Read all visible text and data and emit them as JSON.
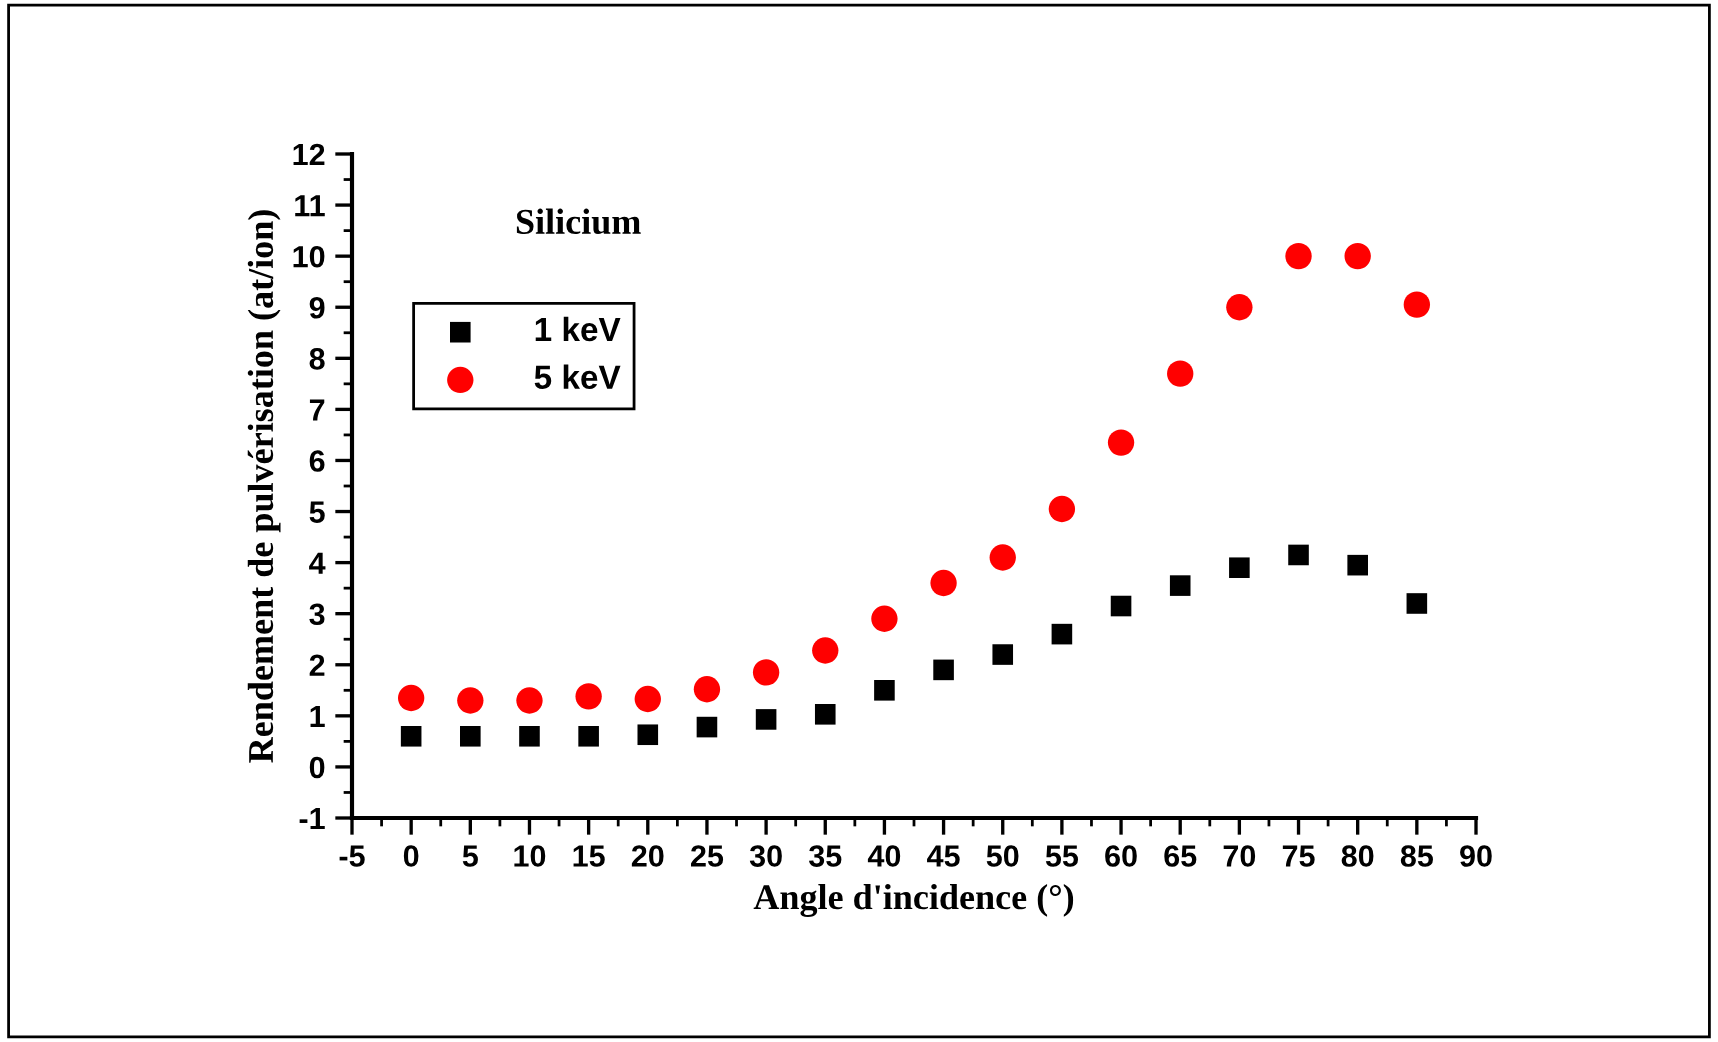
{
  "chart_data": {
    "type": "scatter",
    "xlabel": "Angle d'incidence (°)",
    "ylabel": "Rendement de pulvérisation (at/ion)",
    "annotations": [
      "Silicium"
    ],
    "x": [
      0,
      5,
      10,
      15,
      20,
      25,
      30,
      35,
      40,
      45,
      50,
      55,
      60,
      65,
      70,
      75,
      80,
      85
    ],
    "series": [
      {
        "name": "1 keV",
        "color": "#000000",
        "marker": "square",
        "values": [
          0.6,
          0.6,
          0.6,
          0.6,
          0.63,
          0.78,
          0.93,
          1.03,
          1.5,
          1.9,
          2.2,
          2.6,
          3.15,
          3.55,
          3.9,
          4.15,
          3.95,
          3.2
        ]
      },
      {
        "name": "5 keV",
        "color": "#ff0000",
        "marker": "circle",
        "values": [
          1.35,
          1.3,
          1.3,
          1.38,
          1.33,
          1.52,
          1.85,
          2.28,
          2.9,
          3.6,
          4.1,
          5.05,
          6.35,
          7.7,
          9.0,
          10.0,
          10.0,
          9.05
        ]
      }
    ],
    "xlim": [
      -5,
      90
    ],
    "xticks": [
      -5,
      0,
      5,
      10,
      15,
      20,
      25,
      30,
      35,
      40,
      45,
      50,
      55,
      60,
      65,
      70,
      75,
      80,
      85,
      90
    ],
    "ylim": [
      -1,
      12
    ],
    "yticks": [
      -1,
      0,
      1,
      2,
      3,
      4,
      5,
      6,
      7,
      8,
      9,
      10,
      11,
      12
    ],
    "grid": false,
    "legend": "top left"
  }
}
